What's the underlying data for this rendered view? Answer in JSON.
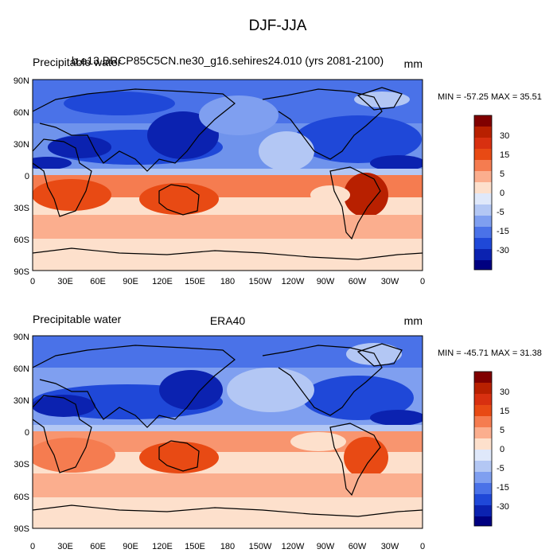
{
  "figure": {
    "title": "DJF-JJA"
  },
  "chart_data": [
    {
      "type": "heatmap",
      "left_title": "Precipitable water",
      "center_title": "b.e13.BRCP85C5CN.ne30_g16.sehires24.010 (yrs 2081-2100)",
      "units": "mm",
      "stats": "MIN = -57.25 MAX =  35.51",
      "x_ticks": [
        "0",
        "30E",
        "60E",
        "90E",
        "120E",
        "150E",
        "180",
        "150W",
        "120W",
        "90W",
        "60W",
        "30W",
        "0"
      ],
      "y_ticks": [
        "90N",
        "60N",
        "30N",
        "0",
        "30S",
        "60S",
        "90S"
      ],
      "xlim": [
        0,
        360
      ],
      "ylim": [
        -90,
        90
      ],
      "colorbar_labels": [
        "30",
        "15",
        "5",
        "0",
        "-5",
        "-15",
        "-30"
      ],
      "colorbar_colors": [
        "#800000",
        "#b82000",
        "#e84a14",
        "#f57c50",
        "#fbae8e",
        "#fde0cc",
        "#ffffff",
        "#dfe8fa",
        "#b3c7f4",
        "#7f9ff0",
        "#4a72e8",
        "#1f48d8",
        "#0b22b0",
        "#000080"
      ]
    },
    {
      "type": "heatmap",
      "left_title": "Precipitable water",
      "center_title": "ERA40",
      "units": "mm",
      "stats": "MIN = -45.71 MAX =  31.38",
      "x_ticks": [
        "0",
        "30E",
        "60E",
        "90E",
        "120E",
        "150E",
        "180",
        "150W",
        "120W",
        "90W",
        "60W",
        "30W",
        "0"
      ],
      "y_ticks": [
        "90N",
        "60N",
        "30N",
        "0",
        "30S",
        "60S",
        "90S"
      ],
      "xlim": [
        0,
        360
      ],
      "ylim": [
        -90,
        90
      ],
      "colorbar_labels": [
        "30",
        "15",
        "5",
        "0",
        "-5",
        "-15",
        "-30"
      ],
      "colorbar_colors": [
        "#800000",
        "#b82000",
        "#e84a14",
        "#f57c50",
        "#fbae8e",
        "#fde0cc",
        "#ffffff",
        "#dfe8fa",
        "#b3c7f4",
        "#7f9ff0",
        "#4a72e8",
        "#1f48d8",
        "#0b22b0",
        "#000080"
      ]
    }
  ]
}
